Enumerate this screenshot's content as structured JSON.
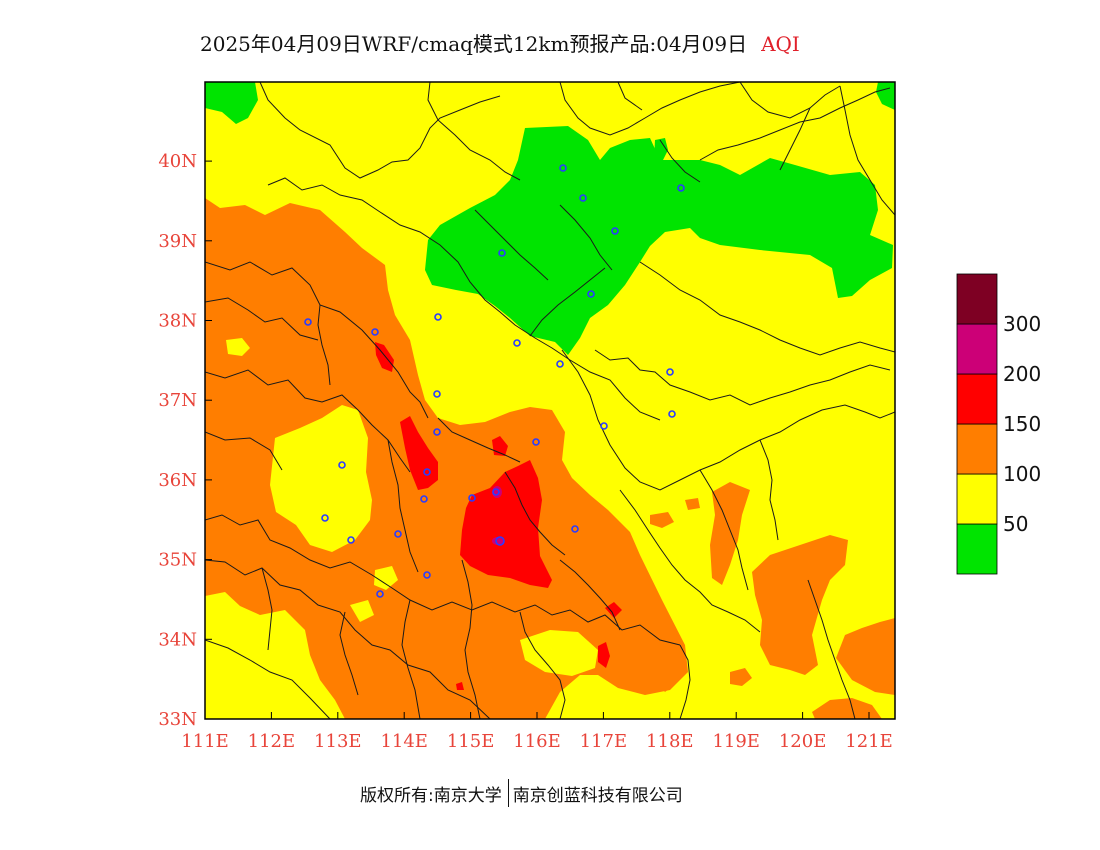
{
  "header": {
    "title": "2025年04月09日WRF/cmaq模式12km预报产品:04月09日",
    "variable": "AQI"
  },
  "axes": {
    "lon_ticks": [
      "111E",
      "112E",
      "113E",
      "114E",
      "115E",
      "116E",
      "117E",
      "118E",
      "119E",
      "120E",
      "121E"
    ],
    "lat_ticks": [
      "33N",
      "34N",
      "35N",
      "36N",
      "37N",
      "38N",
      "39N",
      "40N"
    ]
  },
  "legend": {
    "colors": [
      "#00e400",
      "#ffff00",
      "#ff7e00",
      "#ff0000",
      "#cc0077",
      "#7e0023"
    ],
    "labels": [
      "50",
      "100",
      "150",
      "200",
      "300"
    ]
  },
  "footer": {
    "owner": "版权所有:南京大学",
    "company": "南京创蓝科技有限公司"
  }
}
